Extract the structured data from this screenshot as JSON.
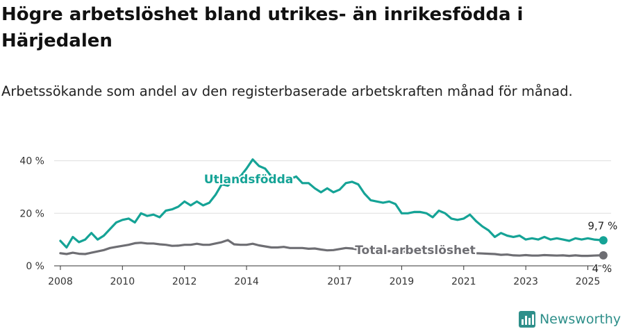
{
  "title": "Högre arbetslöshet bland utrikes- än inrikesfödda i Härjedalen",
  "subtitle": "Arbetssökande som andel av den registerbaserade arbetskraften månad för månad.",
  "brand": {
    "name": "Newsworthy",
    "icon": "newsworthy-logo-icon"
  },
  "colors": {
    "foreign_born": "#15a396",
    "total": "#6e6e73",
    "grid": "#dedede"
  },
  "chart_data": {
    "type": "line",
    "title": "Högre arbetslöshet bland utrikes- än inrikesfödda i Härjedalen",
    "subtitle": "Arbetssökande som andel av den registerbaserade arbetskraften månad för månad.",
    "xlabel": "",
    "ylabel": "",
    "xlim": [
      2007.8,
      2025.75
    ],
    "ylim": [
      0,
      42
    ],
    "y_ticks": [
      0,
      20,
      40
    ],
    "y_tick_labels": [
      "0 %",
      "20 %",
      "40 %"
    ],
    "x_ticks": [
      2008,
      2010,
      2012,
      2014,
      2017,
      2019,
      2021,
      2023,
      2025
    ],
    "x_tick_labels": [
      "2008",
      "2010",
      "2012",
      "2014",
      "2017",
      "2019",
      "2021",
      "2023",
      "2025"
    ],
    "grid": "horizontal",
    "series": [
      {
        "name": "Utlandsfödda",
        "color": "#15a396",
        "end_label": "9,7 %",
        "x": [
          2008.0,
          2008.2,
          2008.4,
          2008.6,
          2008.8,
          2009.0,
          2009.2,
          2009.4,
          2009.6,
          2009.8,
          2010.0,
          2010.2,
          2010.4,
          2010.6,
          2010.8,
          2011.0,
          2011.2,
          2011.4,
          2011.6,
          2011.8,
          2012.0,
          2012.2,
          2012.4,
          2012.6,
          2012.8,
          2013.0,
          2013.2,
          2013.4,
          2013.6,
          2013.8,
          2014.0,
          2014.2,
          2014.4,
          2014.6,
          2014.8,
          2015.0,
          2015.2,
          2015.4,
          2015.6,
          2015.8,
          2016.0,
          2016.2,
          2016.4,
          2016.6,
          2016.8,
          2017.0,
          2017.2,
          2017.4,
          2017.6,
          2017.8,
          2018.0,
          2018.2,
          2018.4,
          2018.6,
          2018.8,
          2019.0,
          2019.2,
          2019.4,
          2019.6,
          2019.8,
          2020.0,
          2020.2,
          2020.4,
          2020.6,
          2020.8,
          2021.0,
          2021.2,
          2021.4,
          2021.6,
          2021.8,
          2022.0,
          2022.2,
          2022.4,
          2022.6,
          2022.8,
          2023.0,
          2023.2,
          2023.4,
          2023.6,
          2023.8,
          2024.0,
          2024.2,
          2024.4,
          2024.6,
          2024.8,
          2025.0,
          2025.2,
          2025.4,
          2025.5
        ],
        "values": [
          9.5,
          7.0,
          11.0,
          9.0,
          10.0,
          12.5,
          10.0,
          11.5,
          14.0,
          16.5,
          17.5,
          18.0,
          16.5,
          20.0,
          19.0,
          19.5,
          18.5,
          21.0,
          21.5,
          22.5,
          24.5,
          23.0,
          24.5,
          23.0,
          24.0,
          27.0,
          31.0,
          30.5,
          33.0,
          34.0,
          37.0,
          40.5,
          38.0,
          37.0,
          34.0,
          32.5,
          33.5,
          33.0,
          34.0,
          31.5,
          31.5,
          29.5,
          28.0,
          29.5,
          28.0,
          29.0,
          31.5,
          32.0,
          31.0,
          27.5,
          25.0,
          24.5,
          24.0,
          24.5,
          23.5,
          20.0,
          20.0,
          20.5,
          20.5,
          20.0,
          18.5,
          21.0,
          20.0,
          18.0,
          17.5,
          18.0,
          19.5,
          17.0,
          15.0,
          13.5,
          11.0,
          12.5,
          11.5,
          11.0,
          11.5,
          10.0,
          10.5,
          10.0,
          11.0,
          10.0,
          10.5,
          10.0,
          9.5,
          10.5,
          10.0,
          10.5,
          10.0,
          9.8,
          9.7
        ]
      },
      {
        "name": "Total arbetslöshet",
        "color": "#6e6e73",
        "end_label": "4 %",
        "x": [
          2008.0,
          2008.2,
          2008.4,
          2008.6,
          2008.8,
          2009.0,
          2009.2,
          2009.4,
          2009.6,
          2009.8,
          2010.0,
          2010.2,
          2010.4,
          2010.6,
          2010.8,
          2011.0,
          2011.2,
          2011.4,
          2011.6,
          2011.8,
          2012.0,
          2012.2,
          2012.4,
          2012.6,
          2012.8,
          2013.0,
          2013.2,
          2013.4,
          2013.6,
          2013.8,
          2014.0,
          2014.2,
          2014.4,
          2014.6,
          2014.8,
          2015.0,
          2015.2,
          2015.4,
          2015.6,
          2015.8,
          2016.0,
          2016.2,
          2016.4,
          2016.6,
          2016.8,
          2017.0,
          2017.2,
          2017.4,
          2017.6,
          2017.8,
          2018.0,
          2018.2,
          2018.4,
          2018.6,
          2018.8,
          2019.0,
          2019.2,
          2019.4,
          2019.6,
          2019.8,
          2020.0,
          2020.2,
          2020.4,
          2020.6,
          2020.8,
          2021.0,
          2021.2,
          2021.4,
          2021.6,
          2021.8,
          2022.0,
          2022.2,
          2022.4,
          2022.6,
          2022.8,
          2023.0,
          2023.2,
          2023.4,
          2023.6,
          2023.8,
          2024.0,
          2024.2,
          2024.4,
          2024.6,
          2024.8,
          2025.0,
          2025.2,
          2025.4,
          2025.5
        ],
        "values": [
          4.8,
          4.5,
          5.0,
          4.6,
          4.5,
          5.0,
          5.5,
          6.0,
          6.8,
          7.2,
          7.6,
          8.0,
          8.6,
          8.8,
          8.5,
          8.5,
          8.2,
          8.0,
          7.6,
          7.7,
          8.0,
          8.0,
          8.4,
          8.0,
          8.0,
          8.5,
          9.0,
          9.8,
          8.2,
          8.0,
          8.0,
          8.4,
          7.8,
          7.4,
          7.0,
          7.0,
          7.2,
          6.8,
          6.8,
          6.8,
          6.5,
          6.6,
          6.2,
          5.9,
          6.0,
          6.4,
          6.8,
          6.6,
          6.2,
          6.0,
          5.8,
          5.6,
          5.5,
          5.6,
          5.4,
          5.4,
          5.3,
          5.2,
          5.4,
          5.0,
          5.4,
          6.2,
          6.0,
          5.8,
          5.6,
          5.2,
          5.0,
          4.8,
          4.7,
          4.6,
          4.5,
          4.2,
          4.3,
          4.0,
          3.9,
          4.1,
          3.9,
          3.9,
          4.1,
          4.0,
          3.9,
          4.0,
          3.8,
          4.0,
          3.8,
          3.8,
          3.9,
          4.0,
          4.0
        ]
      }
    ]
  }
}
